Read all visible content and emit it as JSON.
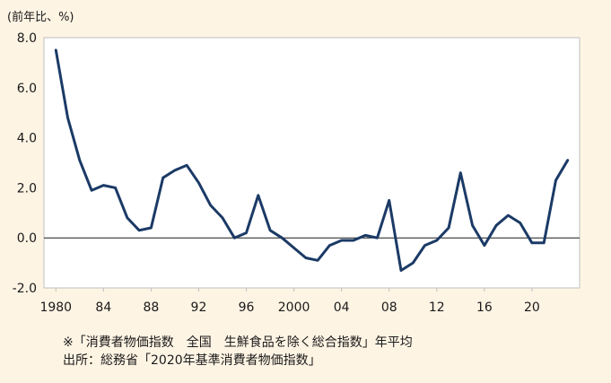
{
  "unit_label": "(前年比、%)",
  "notes": {
    "line1": "※「消費者物価指数　全国　生鮮食品を除く総合指数」年平均",
    "line2": "出所：総務省「2020年基準消費者物価指数」"
  },
  "colors": {
    "line": "#1b3a66",
    "plot_background": "#ffffff",
    "page_background": "#fef4e4",
    "zero_line": "#1a1a1a",
    "grid": "#d9d9d9"
  },
  "chart_data": {
    "type": "line",
    "title": "",
    "xlabel": "",
    "ylabel": "(前年比、%)",
    "ylim": [
      -2.0,
      8.0
    ],
    "yticks": [
      -2.0,
      0.0,
      2.0,
      4.0,
      6.0,
      8.0
    ],
    "ytick_labels": [
      "-2.0",
      "0.0",
      "2.0",
      "4.0",
      "6.0",
      "8.0"
    ],
    "xlim": [
      1979,
      2024
    ],
    "xticks": [
      1980,
      1984,
      1988,
      1992,
      1996,
      2000,
      2004,
      2008,
      2012,
      2016,
      2020
    ],
    "xtick_labels": [
      "1980",
      "84",
      "88",
      "92",
      "96",
      "2000",
      "04",
      "08",
      "12",
      "16",
      "20"
    ],
    "grid": false,
    "x": [
      1980,
      1981,
      1982,
      1983,
      1984,
      1985,
      1986,
      1987,
      1988,
      1989,
      1990,
      1991,
      1992,
      1993,
      1994,
      1995,
      1996,
      1997,
      1998,
      1999,
      2000,
      2001,
      2002,
      2003,
      2004,
      2005,
      2006,
      2007,
      2008,
      2009,
      2010,
      2011,
      2012,
      2013,
      2014,
      2015,
      2016,
      2017,
      2018,
      2019,
      2020,
      2021,
      2022,
      2023
    ],
    "y": [
      7.5,
      4.8,
      3.1,
      1.9,
      2.1,
      2.0,
      0.8,
      0.3,
      0.4,
      2.4,
      2.7,
      2.9,
      2.2,
      1.3,
      0.8,
      0.0,
      0.2,
      1.7,
      0.3,
      0.0,
      -0.4,
      -0.8,
      -0.9,
      -0.3,
      -0.1,
      -0.1,
      0.1,
      0.0,
      1.5,
      -1.3,
      -1.0,
      -0.3,
      -0.1,
      0.4,
      2.6,
      0.5,
      -0.3,
      0.5,
      0.9,
      0.6,
      -0.2,
      -0.2,
      2.3,
      3.1
    ]
  }
}
